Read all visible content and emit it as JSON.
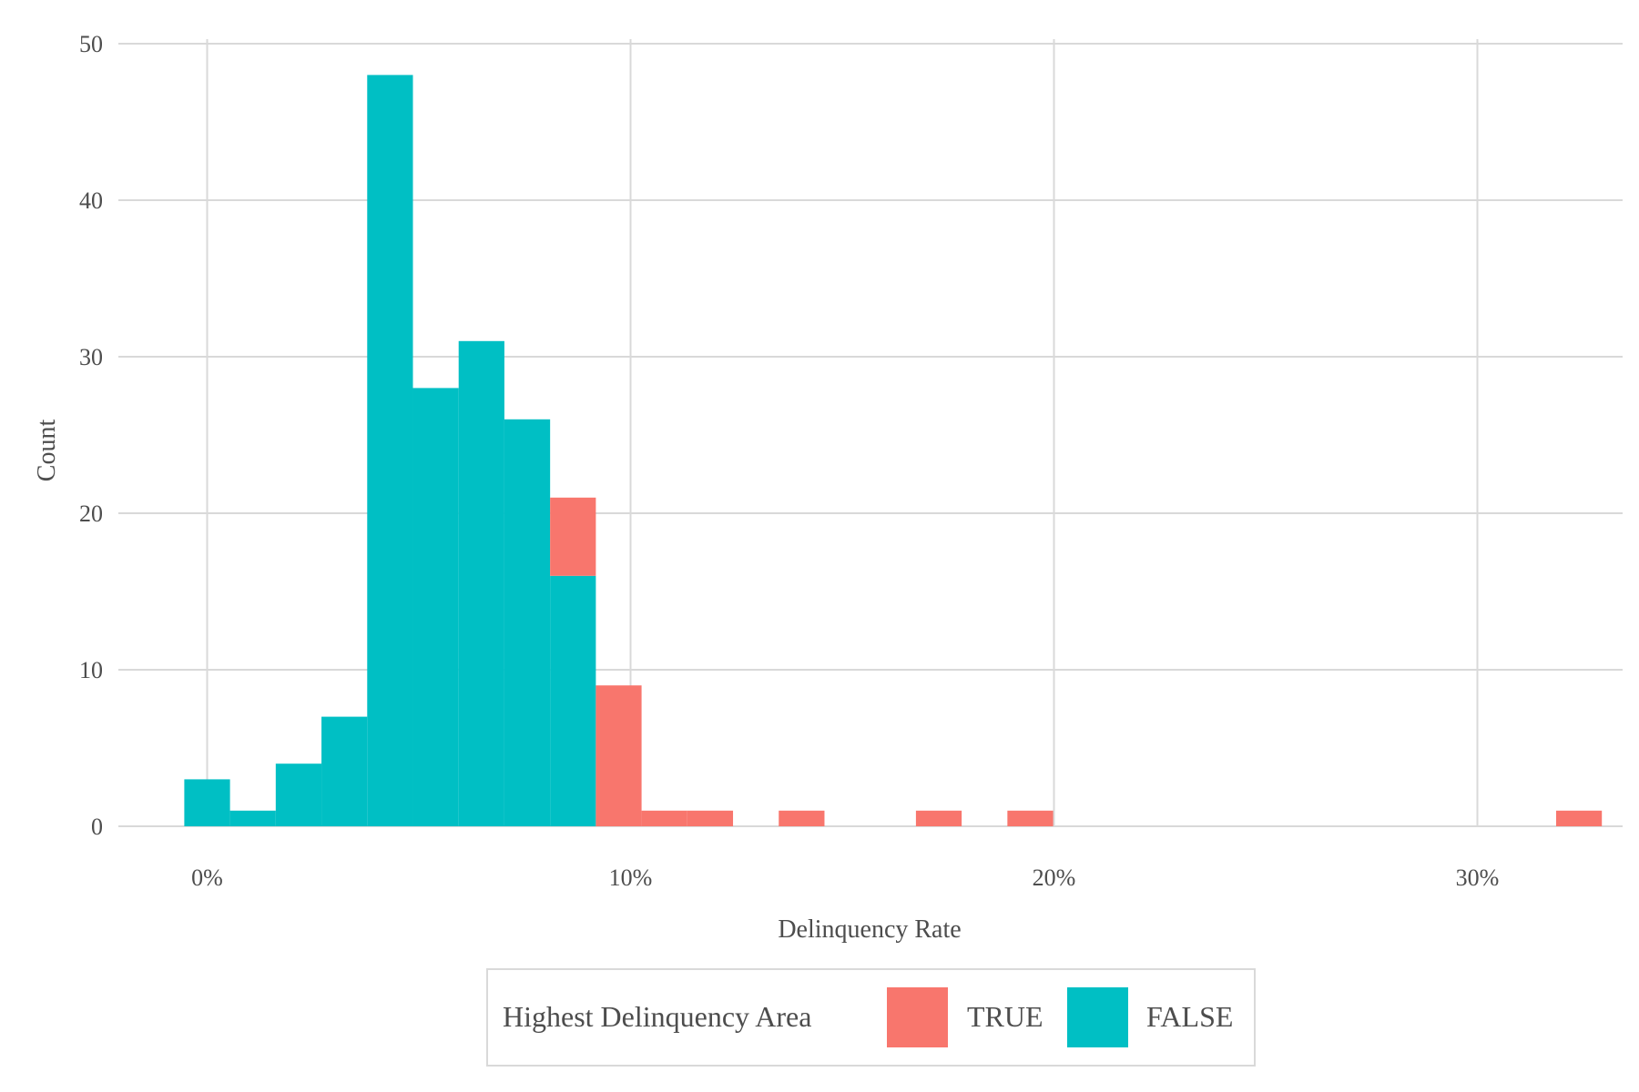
{
  "chart_data": {
    "type": "bar",
    "subtype": "stacked-histogram",
    "title": "",
    "xlabel": "Delinquency Rate",
    "ylabel": "Count",
    "xlim": [
      -0.02,
      0.335
    ],
    "ylim": [
      0,
      50
    ],
    "x_ticks": [
      {
        "value": 0.0,
        "label": "0%"
      },
      {
        "value": 0.1,
        "label": "10%"
      },
      {
        "value": 0.2,
        "label": "20%"
      },
      {
        "value": 0.3,
        "label": "30%"
      }
    ],
    "y_ticks": [
      {
        "value": 0,
        "label": "0"
      },
      {
        "value": 10,
        "label": "10"
      },
      {
        "value": 20,
        "label": "20"
      },
      {
        "value": 30,
        "label": "30"
      },
      {
        "value": 40,
        "label": "40"
      },
      {
        "value": 50,
        "label": "50"
      }
    ],
    "bin_width": 0.0108,
    "bins": [
      -0.0054,
      0.0054,
      0.0162,
      0.027,
      0.0378,
      0.0486,
      0.0594,
      0.0702,
      0.081,
      0.0918,
      0.1026,
      0.1134,
      0.1242,
      0.135,
      0.1458,
      0.1566,
      0.1674,
      0.1782,
      0.189,
      0.1998,
      0.2106,
      0.2214,
      0.2322,
      0.243,
      0.2538,
      0.2646,
      0.2754,
      0.2862,
      0.297,
      0.3078,
      0.3186
    ],
    "series": [
      {
        "name": "FALSE",
        "color": "#00BFC4",
        "values": [
          3,
          1,
          4,
          7,
          48,
          28,
          31,
          26,
          16,
          0,
          0,
          0,
          0,
          0,
          0,
          0,
          0,
          0,
          0,
          0,
          0,
          0,
          0,
          0,
          0,
          0,
          0,
          0,
          0,
          0,
          0
        ]
      },
      {
        "name": "TRUE",
        "color": "#F8766D",
        "values": [
          0,
          0,
          0,
          0,
          0,
          0,
          0,
          0,
          5,
          9,
          1,
          1,
          0,
          1,
          0,
          0,
          1,
          0,
          1,
          0,
          0,
          0,
          0,
          0,
          0,
          0,
          0,
          0,
          0,
          0,
          1
        ]
      }
    ],
    "grid": true,
    "legend": {
      "position": "bottom",
      "title": "Highest Delinquency Area",
      "entries": [
        {
          "label": "TRUE",
          "color": "#F8766D"
        },
        {
          "label": "FALSE",
          "color": "#00BFC4"
        }
      ]
    }
  }
}
